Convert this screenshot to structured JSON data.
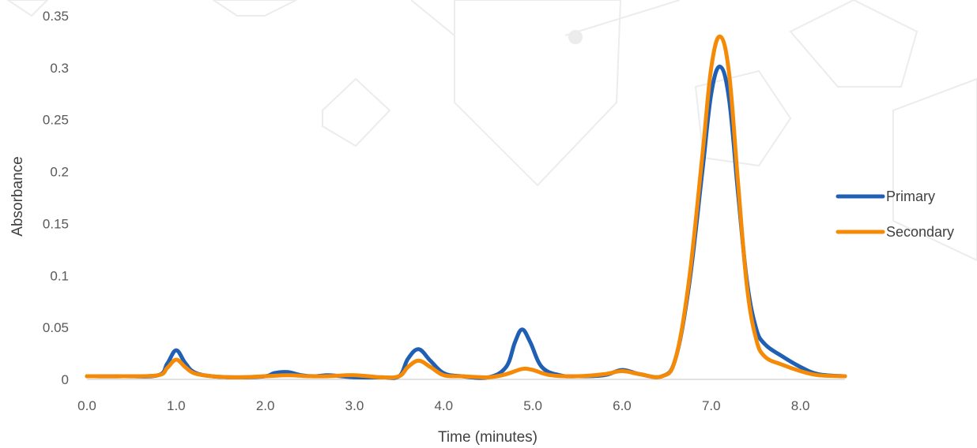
{
  "chart_data": {
    "type": "line",
    "xlabel": "Time (minutes)",
    "ylabel": "Absorbance",
    "xlim": [
      0,
      8.5
    ],
    "ylim": [
      0,
      0.35
    ],
    "x_ticks": [
      "0.0",
      "1.0",
      "2.0",
      "3.0",
      "4.0",
      "5.0",
      "6.0",
      "7.0",
      "8.0"
    ],
    "y_ticks": [
      "0",
      "0.05",
      "0.1",
      "0.15",
      "0.2",
      "0.25",
      "0.3",
      "0.35"
    ],
    "grid": false,
    "legend_position": "right",
    "series": [
      {
        "name": "Primary",
        "color": "#1f5fb4",
        "x": [
          0,
          0.4,
          0.8,
          0.9,
          1.0,
          1.1,
          1.2,
          1.4,
          1.7,
          2.0,
          2.1,
          2.25,
          2.4,
          2.55,
          2.7,
          2.85,
          3.0,
          3.3,
          3.5,
          3.6,
          3.72,
          3.85,
          4.0,
          4.2,
          4.5,
          4.7,
          4.8,
          4.88,
          4.97,
          5.1,
          5.3,
          5.5,
          5.8,
          6.0,
          6.2,
          6.45,
          6.6,
          6.75,
          6.9,
          7.0,
          7.1,
          7.2,
          7.3,
          7.4,
          7.5,
          7.6,
          7.8,
          8.0,
          8.2,
          8.5
        ],
        "y": [
          0.003,
          0.003,
          0.004,
          0.015,
          0.028,
          0.016,
          0.007,
          0.003,
          0.002,
          0.003,
          0.006,
          0.007,
          0.004,
          0.003,
          0.004,
          0.003,
          0.002,
          0.002,
          0.003,
          0.02,
          0.029,
          0.018,
          0.006,
          0.003,
          0.002,
          0.012,
          0.036,
          0.048,
          0.036,
          0.012,
          0.004,
          0.003,
          0.004,
          0.009,
          0.005,
          0.003,
          0.02,
          0.09,
          0.2,
          0.275,
          0.301,
          0.27,
          0.18,
          0.095,
          0.05,
          0.034,
          0.022,
          0.012,
          0.005,
          0.003
        ]
      },
      {
        "name": "Secondary",
        "color": "#f58a07",
        "x": [
          0,
          0.4,
          0.8,
          0.9,
          1.0,
          1.1,
          1.2,
          1.4,
          1.7,
          2.0,
          2.25,
          2.5,
          2.7,
          3.0,
          3.3,
          3.5,
          3.6,
          3.72,
          3.85,
          4.0,
          4.2,
          4.5,
          4.7,
          4.88,
          5.0,
          5.2,
          5.5,
          5.8,
          6.0,
          6.2,
          6.45,
          6.6,
          6.75,
          6.9,
          7.0,
          7.1,
          7.2,
          7.3,
          7.4,
          7.5,
          7.6,
          7.8,
          8.0,
          8.2,
          8.5
        ],
        "y": [
          0.003,
          0.003,
          0.004,
          0.011,
          0.019,
          0.012,
          0.006,
          0.003,
          0.002,
          0.003,
          0.004,
          0.003,
          0.003,
          0.004,
          0.002,
          0.003,
          0.012,
          0.018,
          0.012,
          0.004,
          0.003,
          0.002,
          0.005,
          0.01,
          0.009,
          0.004,
          0.003,
          0.005,
          0.008,
          0.005,
          0.003,
          0.02,
          0.095,
          0.215,
          0.3,
          0.33,
          0.295,
          0.19,
          0.09,
          0.04,
          0.022,
          0.014,
          0.008,
          0.004,
          0.003
        ]
      }
    ]
  }
}
